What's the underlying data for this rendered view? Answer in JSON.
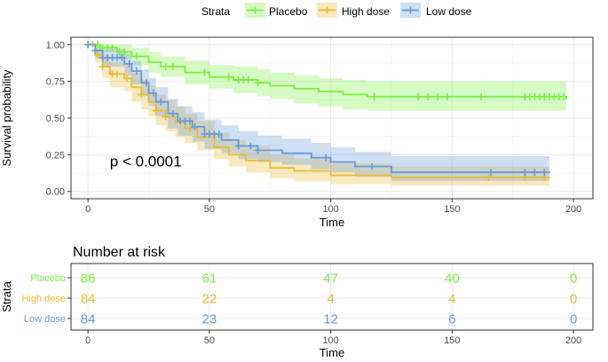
{
  "chart_data": {
    "type": "line",
    "subtype": "kaplan-meier",
    "xlabel": "Time",
    "ylabel": "Survival probability",
    "xlim": [
      -7,
      208
    ],
    "ylim": [
      -0.05,
      1.05
    ],
    "x_ticks": [
      0,
      50,
      100,
      150,
      200
    ],
    "y_ticks": [
      0,
      0.25,
      0.5,
      0.75,
      1
    ],
    "y_tick_labels": [
      "0.00",
      "0.25",
      "0.50",
      "0.75",
      "1.00"
    ],
    "grid": true,
    "annotation": "p < 0.0001",
    "legend": {
      "title": "Strata",
      "position": "top",
      "entries": [
        "Placebo",
        "High dose",
        "Low dose"
      ]
    },
    "series": [
      {
        "name": "Placebo",
        "color": "#7cf045",
        "steps": [
          [
            0,
            1.0
          ],
          [
            5,
            0.98
          ],
          [
            12,
            0.95
          ],
          [
            18,
            0.92
          ],
          [
            25,
            0.88
          ],
          [
            30,
            0.85
          ],
          [
            40,
            0.81
          ],
          [
            50,
            0.78
          ],
          [
            60,
            0.76
          ],
          [
            70,
            0.74
          ],
          [
            75,
            0.72
          ],
          [
            85,
            0.7
          ],
          [
            95,
            0.68
          ],
          [
            105,
            0.66
          ],
          [
            115,
            0.645
          ],
          [
            197,
            0.625
          ]
        ],
        "ci_upper": [
          [
            0,
            1.0
          ],
          [
            5,
            1.0
          ],
          [
            12,
            1.0
          ],
          [
            18,
            0.98
          ],
          [
            25,
            0.95
          ],
          [
            30,
            0.92
          ],
          [
            40,
            0.89
          ],
          [
            50,
            0.86
          ],
          [
            60,
            0.85
          ],
          [
            70,
            0.83
          ],
          [
            75,
            0.81
          ],
          [
            85,
            0.79
          ],
          [
            95,
            0.77
          ],
          [
            105,
            0.76
          ],
          [
            115,
            0.75
          ],
          [
            197,
            0.73
          ]
        ],
        "ci_lower": [
          [
            0,
            1.0
          ],
          [
            5,
            0.95
          ],
          [
            12,
            0.9
          ],
          [
            18,
            0.86
          ],
          [
            25,
            0.81
          ],
          [
            30,
            0.78
          ],
          [
            40,
            0.73
          ],
          [
            50,
            0.7
          ],
          [
            60,
            0.67
          ],
          [
            70,
            0.65
          ],
          [
            75,
            0.63
          ],
          [
            85,
            0.6
          ],
          [
            95,
            0.58
          ],
          [
            105,
            0.56
          ],
          [
            115,
            0.55
          ],
          [
            197,
            0.53
          ]
        ],
        "censor_x": [
          0,
          2,
          4,
          6,
          8,
          10,
          13,
          15,
          20,
          32,
          35,
          48,
          58,
          62,
          64,
          66,
          70,
          118,
          136,
          140,
          144,
          148,
          162,
          180,
          182,
          184,
          186,
          188,
          190,
          192,
          194,
          196
        ],
        "at_risk": [
          86,
          61,
          47,
          40,
          0
        ]
      },
      {
        "name": "High dose",
        "color": "#e8bc35",
        "steps": [
          [
            0,
            1.0
          ],
          [
            3,
            0.93
          ],
          [
            6,
            0.85
          ],
          [
            9,
            0.8
          ],
          [
            15,
            0.77
          ],
          [
            18,
            0.71
          ],
          [
            22,
            0.66
          ],
          [
            25,
            0.61
          ],
          [
            28,
            0.55
          ],
          [
            32,
            0.51
          ],
          [
            36,
            0.47
          ],
          [
            40,
            0.43
          ],
          [
            45,
            0.37
          ],
          [
            52,
            0.3
          ],
          [
            58,
            0.25
          ],
          [
            65,
            0.21
          ],
          [
            75,
            0.16
          ],
          [
            85,
            0.14
          ],
          [
            100,
            0.11
          ],
          [
            125,
            0.095
          ],
          [
            190,
            0.09
          ]
        ],
        "ci_upper": [
          [
            0,
            1.0
          ],
          [
            3,
            0.98
          ],
          [
            6,
            0.93
          ],
          [
            9,
            0.88
          ],
          [
            15,
            0.86
          ],
          [
            18,
            0.81
          ],
          [
            22,
            0.76
          ],
          [
            25,
            0.72
          ],
          [
            28,
            0.66
          ],
          [
            32,
            0.62
          ],
          [
            36,
            0.58
          ],
          [
            40,
            0.53
          ],
          [
            45,
            0.48
          ],
          [
            52,
            0.4
          ],
          [
            58,
            0.35
          ],
          [
            65,
            0.31
          ],
          [
            75,
            0.25
          ],
          [
            85,
            0.22
          ],
          [
            100,
            0.19
          ],
          [
            125,
            0.17
          ],
          [
            190,
            0.16
          ]
        ],
        "ci_lower": [
          [
            0,
            1.0
          ],
          [
            3,
            0.88
          ],
          [
            6,
            0.77
          ],
          [
            9,
            0.71
          ],
          [
            15,
            0.68
          ],
          [
            18,
            0.61
          ],
          [
            22,
            0.56
          ],
          [
            25,
            0.51
          ],
          [
            28,
            0.45
          ],
          [
            32,
            0.41
          ],
          [
            36,
            0.37
          ],
          [
            40,
            0.33
          ],
          [
            45,
            0.28
          ],
          [
            52,
            0.22
          ],
          [
            58,
            0.17
          ],
          [
            65,
            0.13
          ],
          [
            75,
            0.09
          ],
          [
            85,
            0.07
          ],
          [
            100,
            0.05
          ],
          [
            125,
            0.04
          ],
          [
            190,
            0.04
          ]
        ],
        "censor_x": [
          0,
          2,
          4,
          6,
          10,
          12,
          16,
          22,
          28,
          32,
          42,
          165,
          180,
          188
        ],
        "at_risk": [
          84,
          22,
          4,
          4,
          0
        ]
      },
      {
        "name": "Low dose",
        "color": "#6a9bd8",
        "steps": [
          [
            0,
            1.0
          ],
          [
            3,
            0.96
          ],
          [
            6,
            0.91
          ],
          [
            15,
            0.87
          ],
          [
            18,
            0.82
          ],
          [
            22,
            0.74
          ],
          [
            25,
            0.67
          ],
          [
            28,
            0.61
          ],
          [
            33,
            0.53
          ],
          [
            37,
            0.48
          ],
          [
            43,
            0.44
          ],
          [
            48,
            0.39
          ],
          [
            55,
            0.35
          ],
          [
            62,
            0.31
          ],
          [
            70,
            0.28
          ],
          [
            80,
            0.26
          ],
          [
            92,
            0.23
          ],
          [
            100,
            0.2
          ],
          [
            110,
            0.17
          ],
          [
            125,
            0.13
          ],
          [
            190,
            0.125
          ]
        ],
        "ci_upper": [
          [
            0,
            1.0
          ],
          [
            3,
            1.0
          ],
          [
            6,
            0.97
          ],
          [
            15,
            0.94
          ],
          [
            18,
            0.89
          ],
          [
            22,
            0.83
          ],
          [
            25,
            0.77
          ],
          [
            28,
            0.71
          ],
          [
            33,
            0.63
          ],
          [
            37,
            0.58
          ],
          [
            43,
            0.54
          ],
          [
            48,
            0.49
          ],
          [
            55,
            0.45
          ],
          [
            62,
            0.41
          ],
          [
            70,
            0.38
          ],
          [
            80,
            0.36
          ],
          [
            92,
            0.33
          ],
          [
            100,
            0.3
          ],
          [
            110,
            0.27
          ],
          [
            125,
            0.24
          ],
          [
            190,
            0.23
          ]
        ],
        "ci_lower": [
          [
            0,
            1.0
          ],
          [
            3,
            0.91
          ],
          [
            6,
            0.85
          ],
          [
            15,
            0.79
          ],
          [
            18,
            0.73
          ],
          [
            22,
            0.65
          ],
          [
            25,
            0.58
          ],
          [
            28,
            0.51
          ],
          [
            33,
            0.43
          ],
          [
            37,
            0.38
          ],
          [
            43,
            0.34
          ],
          [
            48,
            0.29
          ],
          [
            55,
            0.26
          ],
          [
            62,
            0.22
          ],
          [
            70,
            0.2
          ],
          [
            80,
            0.18
          ],
          [
            92,
            0.15
          ],
          [
            100,
            0.13
          ],
          [
            110,
            0.1
          ],
          [
            125,
            0.07
          ],
          [
            190,
            0.06
          ]
        ],
        "censor_x": [
          0,
          3,
          6,
          8,
          10,
          12,
          14,
          17,
          20,
          24,
          27,
          30,
          35,
          38,
          40,
          42,
          44,
          48,
          50,
          52,
          54,
          62,
          67,
          70,
          98,
          117,
          166,
          180,
          184,
          188
        ],
        "at_risk": [
          84,
          23,
          12,
          6,
          0
        ]
      }
    ],
    "risk_table": {
      "title": "Number at risk",
      "ylabel": "Strata",
      "xlabel": "Time",
      "times": [
        0,
        50,
        100,
        150,
        200
      ]
    }
  }
}
